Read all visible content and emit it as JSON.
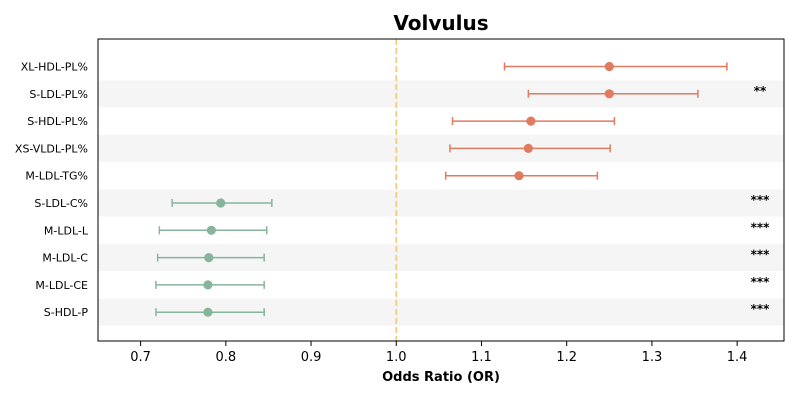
{
  "chart_data": {
    "type": "forest",
    "title": "Volvulus",
    "xlabel": "Odds Ratio (OR)",
    "xlim": [
      0.65,
      1.455
    ],
    "xticks": [
      0.7,
      0.8,
      0.9,
      1.0,
      1.1,
      1.2,
      1.3,
      1.4
    ],
    "xtick_labels": [
      "0.7",
      "0.8",
      "0.9",
      "1.0",
      "1.1",
      "1.2",
      "1.3",
      "1.4"
    ],
    "reference_line": 1.0,
    "grid": false,
    "colors": {
      "risk": "#e07b5f",
      "protective": "#86b59c",
      "reference": "#f5c97a",
      "band": "#f5f5f5"
    },
    "rows": [
      {
        "label": "XL-HDL-PL%",
        "or": 1.25,
        "lower": 1.127,
        "upper": 1.388,
        "group": "risk",
        "sig": ""
      },
      {
        "label": "S-LDL-PL%",
        "or": 1.25,
        "lower": 1.155,
        "upper": 1.354,
        "group": "risk",
        "sig": "**"
      },
      {
        "label": "S-HDL-PL%",
        "or": 1.158,
        "lower": 1.066,
        "upper": 1.256,
        "group": "risk",
        "sig": ""
      },
      {
        "label": "XS-VLDL-PL%",
        "or": 1.155,
        "lower": 1.063,
        "upper": 1.251,
        "group": "risk",
        "sig": ""
      },
      {
        "label": "M-LDL-TG%",
        "or": 1.144,
        "lower": 1.058,
        "upper": 1.236,
        "group": "risk",
        "sig": ""
      },
      {
        "label": "S-LDL-C%",
        "or": 0.794,
        "lower": 0.737,
        "upper": 0.854,
        "group": "protective",
        "sig": "***"
      },
      {
        "label": "M-LDL-L",
        "or": 0.783,
        "lower": 0.722,
        "upper": 0.848,
        "group": "protective",
        "sig": "***"
      },
      {
        "label": "M-LDL-C",
        "or": 0.78,
        "lower": 0.72,
        "upper": 0.845,
        "group": "protective",
        "sig": "***"
      },
      {
        "label": "M-LDL-CE",
        "or": 0.779,
        "lower": 0.718,
        "upper": 0.845,
        "group": "protective",
        "sig": "***"
      },
      {
        "label": "S-HDL-P",
        "or": 0.779,
        "lower": 0.718,
        "upper": 0.845,
        "group": "protective",
        "sig": "***"
      }
    ]
  }
}
